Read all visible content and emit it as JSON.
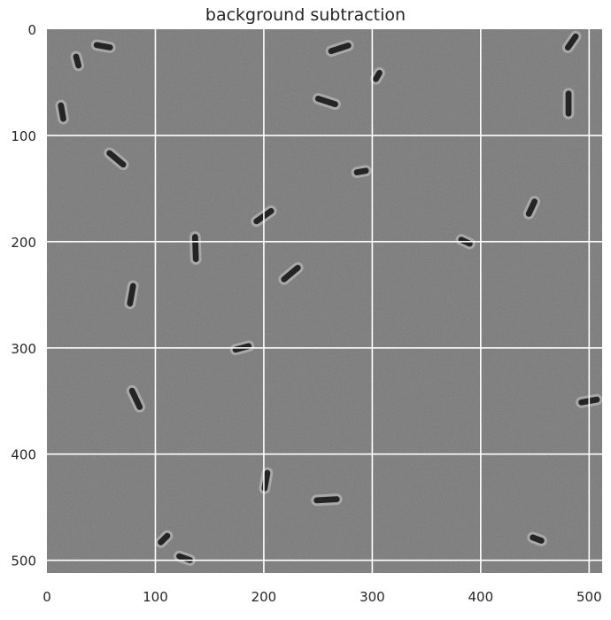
{
  "title": "background subtraction",
  "x_axis": {
    "range": [
      0,
      512
    ],
    "ticks": [
      0,
      100,
      200,
      300,
      400,
      500
    ]
  },
  "y_axis": {
    "range": [
      0,
      512
    ],
    "inverted": true,
    "ticks": [
      0,
      100,
      200,
      300,
      400,
      500
    ]
  },
  "grid": {
    "enabled": true,
    "color": "#ffffff",
    "spacing": 100
  },
  "image": {
    "background_gray": "#8a8a8a",
    "cell_color": "#242424",
    "cells": [
      {
        "x": 52,
        "y": 16,
        "angle": 10,
        "len": 18
      },
      {
        "x": 28,
        "y": 30,
        "angle": 75,
        "len": 14
      },
      {
        "x": 14,
        "y": 78,
        "angle": 80,
        "len": 18
      },
      {
        "x": 270,
        "y": 18,
        "angle": -18,
        "len": 22
      },
      {
        "x": 258,
        "y": 68,
        "angle": 18,
        "len": 22
      },
      {
        "x": 305,
        "y": 44,
        "angle": -60,
        "len": 12
      },
      {
        "x": 484,
        "y": 12,
        "angle": -55,
        "len": 18
      },
      {
        "x": 481,
        "y": 70,
        "angle": 90,
        "len": 24
      },
      {
        "x": 64,
        "y": 122,
        "angle": 40,
        "len": 22
      },
      {
        "x": 290,
        "y": 134,
        "angle": -10,
        "len": 14
      },
      {
        "x": 200,
        "y": 176,
        "angle": -35,
        "len": 22
      },
      {
        "x": 447,
        "y": 168,
        "angle": -65,
        "len": 18
      },
      {
        "x": 137,
        "y": 206,
        "angle": 88,
        "len": 26
      },
      {
        "x": 386,
        "y": 200,
        "angle": 25,
        "len": 14
      },
      {
        "x": 225,
        "y": 230,
        "angle": -40,
        "len": 22
      },
      {
        "x": 78,
        "y": 250,
        "angle": -80,
        "len": 22
      },
      {
        "x": 180,
        "y": 300,
        "angle": -15,
        "len": 18
      },
      {
        "x": 82,
        "y": 348,
        "angle": 65,
        "len": 22
      },
      {
        "x": 500,
        "y": 350,
        "angle": -10,
        "len": 20
      },
      {
        "x": 202,
        "y": 425,
        "angle": -80,
        "len": 20
      },
      {
        "x": 258,
        "y": 443,
        "angle": -3,
        "len": 24
      },
      {
        "x": 108,
        "y": 480,
        "angle": -45,
        "len": 14
      },
      {
        "x": 127,
        "y": 498,
        "angle": 20,
        "len": 16
      },
      {
        "x": 452,
        "y": 480,
        "angle": 20,
        "len": 14
      }
    ]
  }
}
